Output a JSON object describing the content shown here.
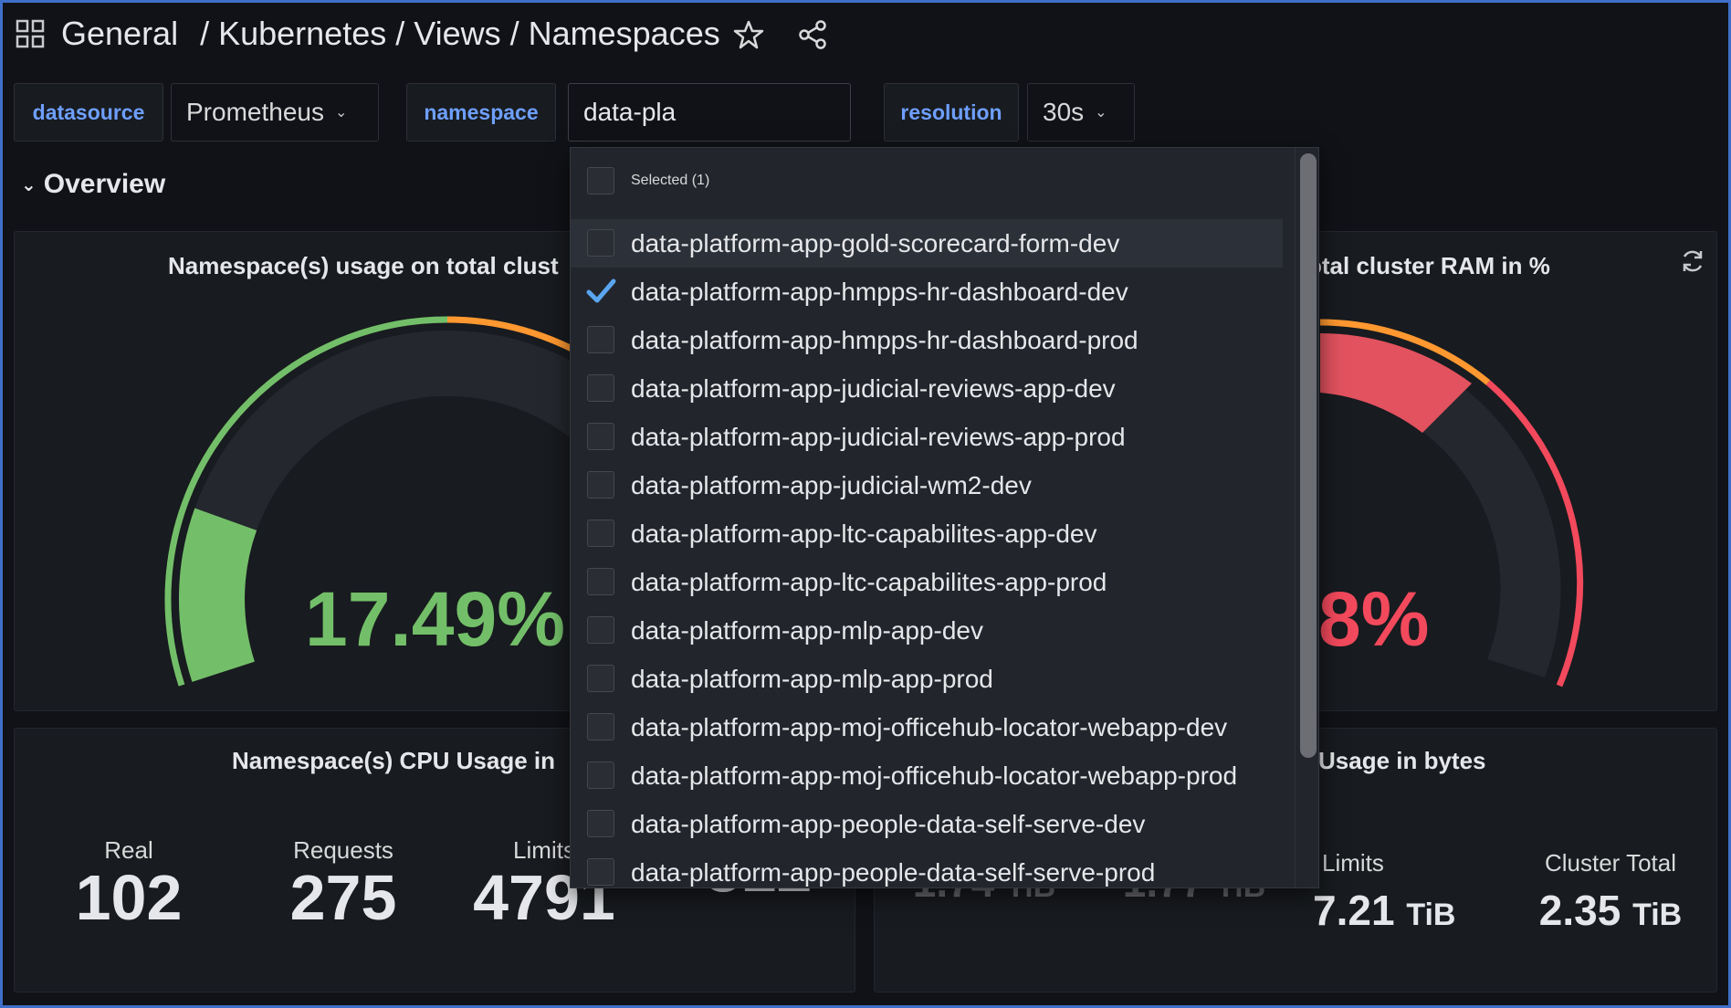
{
  "header": {
    "breadcrumb": [
      "General",
      "/ Kubernetes / Views / Namespaces"
    ]
  },
  "variables": {
    "datasource_label": "datasource",
    "datasource_value": "Prometheus",
    "namespace_label": "namespace",
    "namespace_input": "data-pla",
    "resolution_label": "resolution",
    "resolution_value": "30s"
  },
  "row": {
    "title": "Overview"
  },
  "panels": {
    "cpu_gauge_title": "Namespace(s) usage on total clust",
    "cpu_gauge_value": "17.49%",
    "cpu_gauge_percent": 17.49,
    "ram_gauge_title": "otal cluster RAM in %",
    "ram_gauge_value": "8%",
    "cpu_usage_title": "Namespace(s) CPU Usage in",
    "cpu_stats": [
      {
        "label": "Real",
        "value": "102"
      },
      {
        "label": "Requests",
        "value": "275"
      },
      {
        "label": "Limits",
        "value": "4791"
      },
      {
        "label": "",
        "value": "312"
      }
    ],
    "mem_usage_title": "Usage in bytes",
    "mem_stats": [
      {
        "value": "1.74",
        "unit": "TiB"
      },
      {
        "value": "1.77",
        "unit": "TiB"
      },
      {
        "label": "Limits",
        "value": "7.21",
        "unit": "TiB"
      },
      {
        "label": "Cluster Total",
        "value": "2.35",
        "unit": "TiB"
      }
    ]
  },
  "dropdown": {
    "selected_header": "Selected (1)",
    "options": [
      {
        "label": "data-platform-app-gold-scorecard-form-dev",
        "checked": false
      },
      {
        "label": "data-platform-app-hmpps-hr-dashboard-dev",
        "checked": true
      },
      {
        "label": "data-platform-app-hmpps-hr-dashboard-prod",
        "checked": false
      },
      {
        "label": "data-platform-app-judicial-reviews-app-dev",
        "checked": false
      },
      {
        "label": "data-platform-app-judicial-reviews-app-prod",
        "checked": false
      },
      {
        "label": "data-platform-app-judicial-wm2-dev",
        "checked": false
      },
      {
        "label": "data-platform-app-ltc-capabilites-app-dev",
        "checked": false
      },
      {
        "label": "data-platform-app-ltc-capabilites-app-prod",
        "checked": false
      },
      {
        "label": "data-platform-app-mlp-app-dev",
        "checked": false
      },
      {
        "label": "data-platform-app-mlp-app-prod",
        "checked": false
      },
      {
        "label": "data-platform-app-moj-officehub-locator-webapp-dev",
        "checked": false
      },
      {
        "label": "data-platform-app-moj-officehub-locator-webapp-prod",
        "checked": false
      },
      {
        "label": "data-platform-app-people-data-self-serve-dev",
        "checked": false
      },
      {
        "label": "data-platform-app-people-data-self-serve-prod",
        "checked": false
      }
    ]
  },
  "colors": {
    "green": "#73bf69",
    "orange": "#ff9830",
    "red": "#f2495c",
    "link_blue": "#6e9fff",
    "check_blue": "#5aa5f0"
  }
}
